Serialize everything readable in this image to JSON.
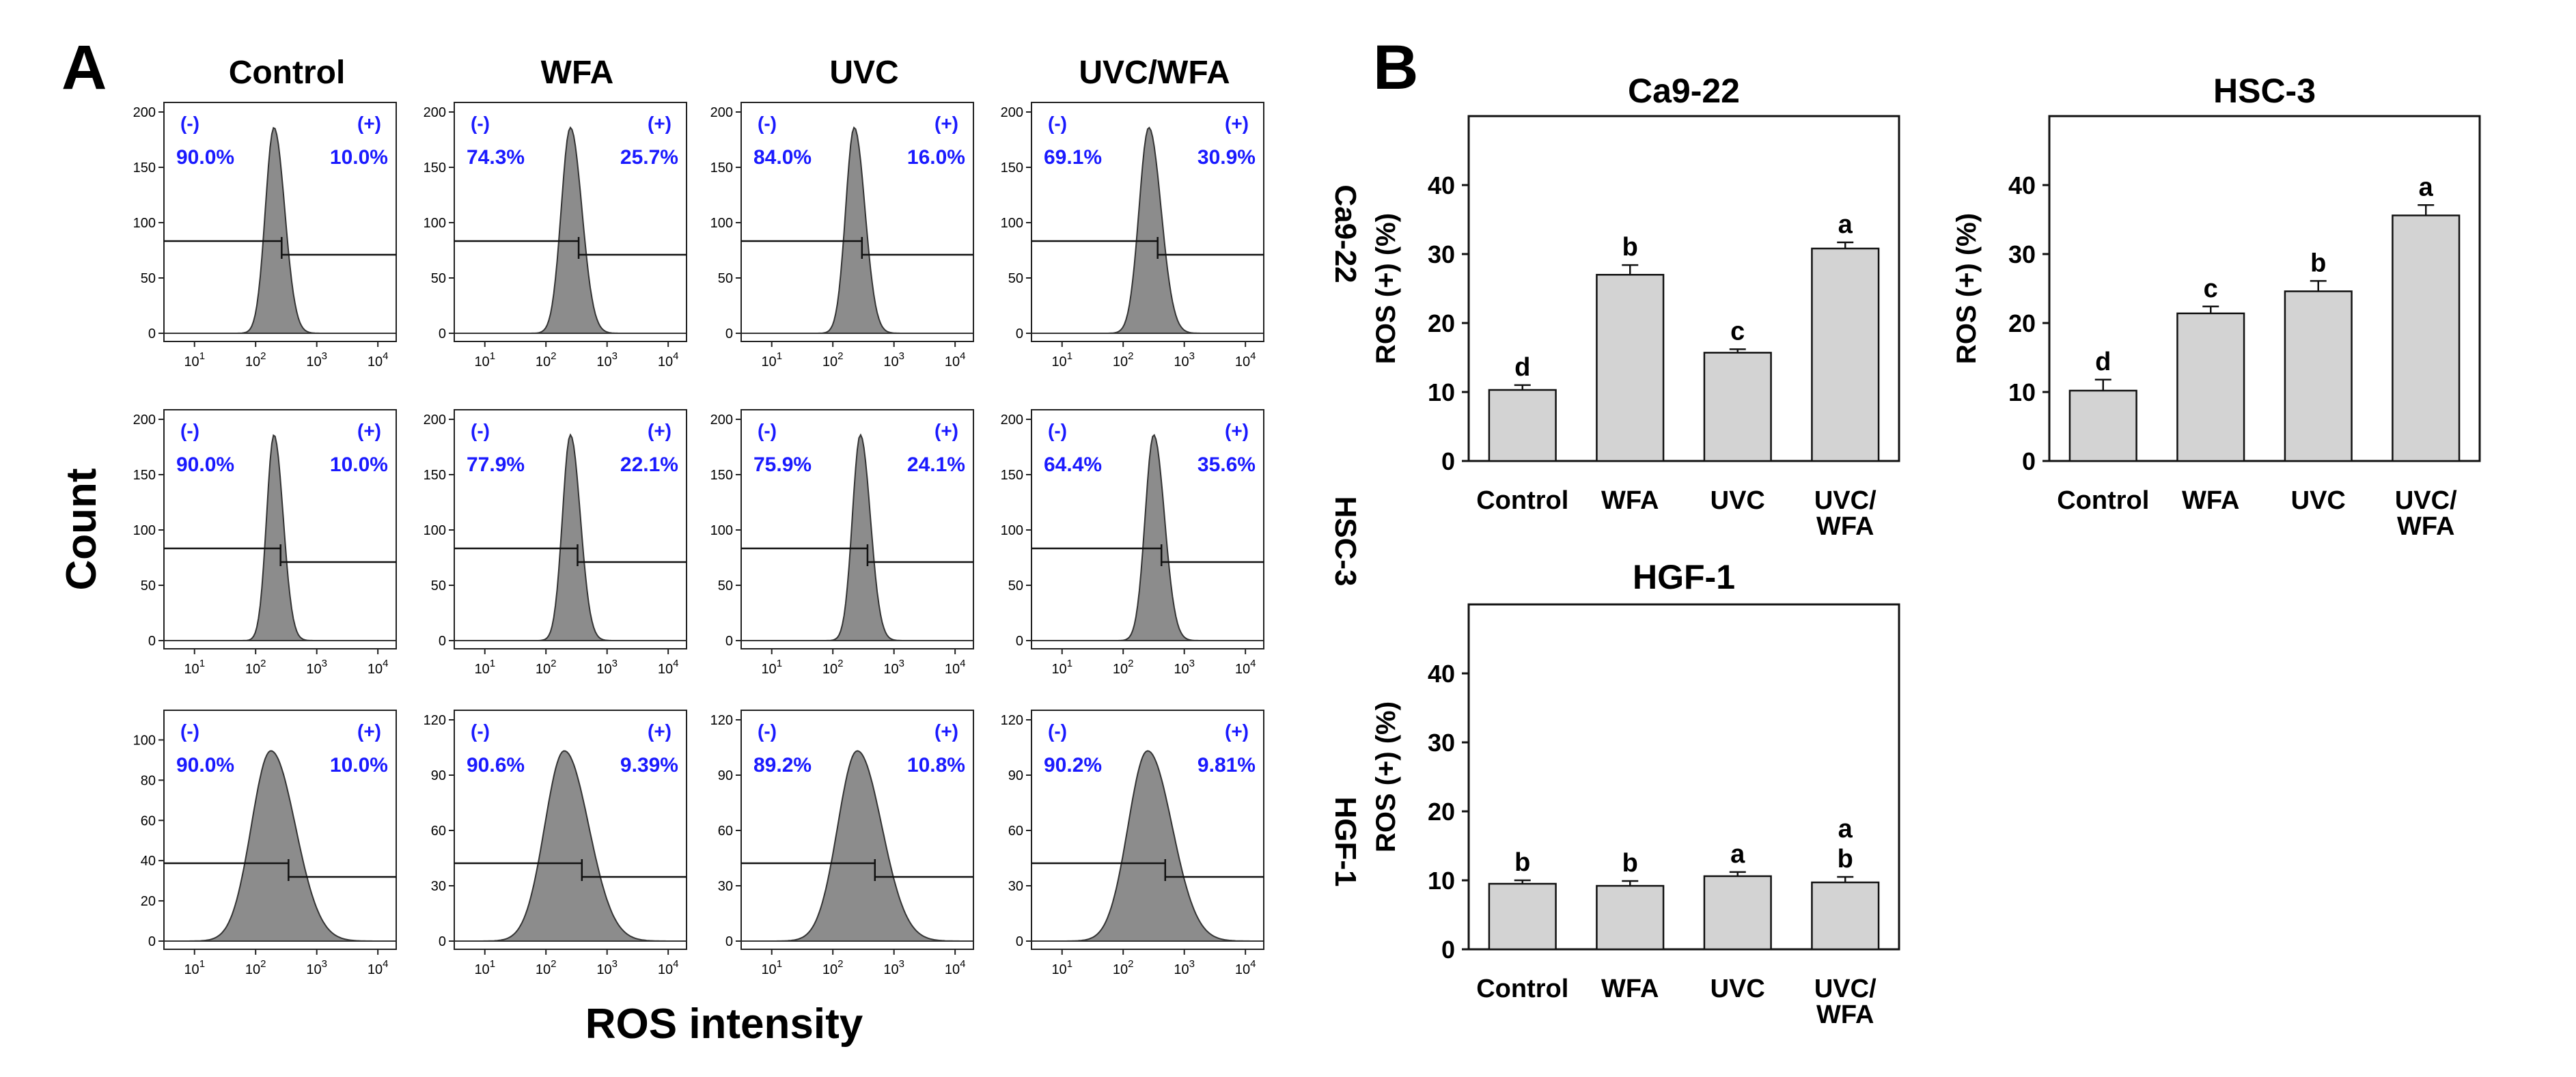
{
  "figure": {
    "panel_a_label": "A",
    "panel_b_label": "B",
    "y_title": "Count",
    "x_title": "ROS intensity",
    "columns": [
      "Control",
      "WFA",
      "UVC",
      "UVC/WFA"
    ],
    "rows": [
      "Ca9-22",
      "HSC-3",
      "HGF-1"
    ],
    "neg_label": "(-)",
    "pos_label": "(+)",
    "x_ticks": [
      "10",
      "10",
      "10",
      "10"
    ],
    "x_tick_exponents": [
      "1",
      "2",
      "3",
      "4"
    ]
  },
  "colors": {
    "percent_text": "#1a1aff",
    "hist_fill": "#8c8c8c",
    "bar_fill": "#d3d3d3"
  },
  "chart_data": [
    {
      "type": "histogram-grid",
      "rows": [
        {
          "cell_line": "Ca9-22",
          "ymax": 200,
          "yticks": [
            "0",
            "50",
            "100",
            "150",
            "200"
          ],
          "panels": [
            {
              "condition": "Control",
              "neg": "90.0%",
              "pos": "10.0%",
              "peak_log": 2.3,
              "width": 0.14
            },
            {
              "condition": "WFA",
              "neg": "74.3%",
              "pos": "25.7%",
              "peak_log": 2.4,
              "width": 0.15
            },
            {
              "condition": "UVC",
              "neg": "84.0%",
              "pos": "16.0%",
              "peak_log": 2.35,
              "width": 0.14
            },
            {
              "condition": "UVC/WFA",
              "neg": "69.1%",
              "pos": "30.9%",
              "peak_log": 2.42,
              "width": 0.16
            }
          ]
        },
        {
          "cell_line": "HSC-3",
          "ymax": 200,
          "yticks": [
            "0",
            "50",
            "100",
            "150",
            "200"
          ],
          "panels": [
            {
              "condition": "Control",
              "neg": "90.0%",
              "pos": "10.0%",
              "peak_log": 2.3,
              "width": 0.12
            },
            {
              "condition": "WFA",
              "neg": "77.9%",
              "pos": "22.1%",
              "peak_log": 2.4,
              "width": 0.13
            },
            {
              "condition": "UVC",
              "neg": "75.9%",
              "pos": "24.1%",
              "peak_log": 2.45,
              "width": 0.13
            },
            {
              "condition": "UVC/WFA",
              "neg": "64.4%",
              "pos": "35.6%",
              "peak_log": 2.5,
              "width": 0.14
            }
          ]
        },
        {
          "cell_line": "HGF-1",
          "ymax": 120,
          "panels": [
            {
              "condition": "Control",
              "neg": "90.0%",
              "pos": "10.0%",
              "peak_log": 2.25,
              "width": 0.32,
              "yticks": [
                "0",
                "20",
                "40",
                "60",
                "80",
                "100"
              ],
              "ymax_panel": 110
            },
            {
              "condition": "WFA",
              "neg": "90.6%",
              "pos": "9.39%",
              "peak_log": 2.3,
              "width": 0.32,
              "yticks": [
                "0",
                "30",
                "60",
                "90",
                "120"
              ],
              "ymax_panel": 120
            },
            {
              "condition": "UVC",
              "neg": "89.2%",
              "pos": "10.8%",
              "peak_log": 2.4,
              "width": 0.32,
              "yticks": [
                "0",
                "30",
                "60",
                "90",
                "120"
              ],
              "ymax_panel": 120
            },
            {
              "condition": "UVC/WFA",
              "neg": "90.2%",
              "pos": "9.81%",
              "peak_log": 2.4,
              "width": 0.32,
              "yticks": [
                "0",
                "30",
                "60",
                "90",
                "120"
              ],
              "ymax_panel": 120
            }
          ]
        }
      ],
      "xlim_log10": [
        0.5,
        4.3
      ],
      "xlabel": "ROS intensity",
      "ylabel": "Count"
    },
    {
      "type": "bar",
      "title": "Ca9-22",
      "ylabel": "ROS (+) (%)",
      "ylim": [
        0,
        50
      ],
      "yticks": [
        "0",
        "10",
        "20",
        "30",
        "40"
      ],
      "categories": [
        [
          "Control"
        ],
        [
          "WFA"
        ],
        [
          "UVC"
        ],
        [
          "UVC/",
          "WFA"
        ]
      ],
      "values": [
        10.3,
        27.0,
        15.7,
        30.8
      ],
      "errors": [
        0.7,
        1.4,
        0.5,
        0.9
      ],
      "letters": [
        [
          "d"
        ],
        [
          "b"
        ],
        [
          "c"
        ],
        [
          "a"
        ]
      ]
    },
    {
      "type": "bar",
      "title": "HSC-3",
      "ylabel": "ROS (+) (%)",
      "ylim": [
        0,
        50
      ],
      "yticks": [
        "0",
        "10",
        "20",
        "30",
        "40"
      ],
      "categories": [
        [
          "Control"
        ],
        [
          "WFA"
        ],
        [
          "UVC"
        ],
        [
          "UVC/",
          "WFA"
        ]
      ],
      "values": [
        10.2,
        21.4,
        24.6,
        35.6
      ],
      "errors": [
        1.6,
        1.0,
        1.5,
        1.5
      ],
      "letters": [
        [
          "d"
        ],
        [
          "c"
        ],
        [
          "b"
        ],
        [
          "a"
        ]
      ]
    },
    {
      "type": "bar",
      "title": "HGF-1",
      "ylabel": "ROS (+) (%)",
      "ylim": [
        0,
        50
      ],
      "yticks": [
        "0",
        "10",
        "20",
        "30",
        "40"
      ],
      "categories": [
        [
          "Control"
        ],
        [
          "WFA"
        ],
        [
          "UVC"
        ],
        [
          "UVC/",
          "WFA"
        ]
      ],
      "values": [
        9.5,
        9.2,
        10.6,
        9.7
      ],
      "errors": [
        0.5,
        0.7,
        0.6,
        0.8
      ],
      "letters": [
        [
          "b"
        ],
        [
          "b"
        ],
        [
          "a"
        ],
        [
          "a",
          "b"
        ]
      ]
    }
  ]
}
